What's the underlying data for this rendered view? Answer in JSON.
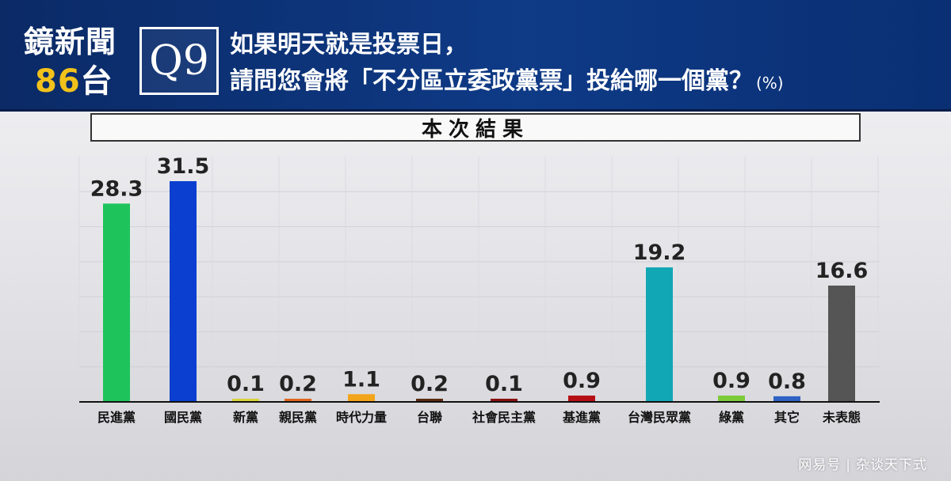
{
  "logo": {
    "line1": "鏡新聞",
    "num": "86",
    "tai": "台"
  },
  "question": {
    "number": "Q9",
    "line1": "如果明天就是投票日，",
    "line2": "請問您會將「不分區立委政黨票」投給哪一個黨？",
    "unit": "(%)"
  },
  "section_title": "本次結果",
  "watermark": {
    "site": "网易号",
    "account": "杂谈天下式"
  },
  "chart_data": {
    "type": "bar",
    "categories": [
      "民進黨",
      "國民黨",
      "新黨",
      "親民黨",
      "時代力量",
      "台聯",
      "社會民主黨",
      "基進黨",
      "台灣民眾黨",
      "綠黨",
      "其它",
      "未表態"
    ],
    "values": [
      28.3,
      31.5,
      0.1,
      0.2,
      1.1,
      0.2,
      0.1,
      0.9,
      19.2,
      0.9,
      0.8,
      16.6
    ],
    "value_labels": [
      "28.3",
      "31.5",
      "0.1",
      "0.2",
      "1.1",
      "0.2",
      "0.1",
      "0.9",
      "19.2",
      "0.9",
      "0.8",
      "16.6"
    ],
    "colors": [
      "#1ec35c",
      "#0a3fd0",
      "#d9d23a",
      "#e0661f",
      "#f2a41a",
      "#5a2a10",
      "#8a1010",
      "#b50f15",
      "#12a7b5",
      "#7ecb3a",
      "#2f62c2",
      "#555555"
    ],
    "ylim": [
      0,
      35
    ],
    "grid": true
  }
}
